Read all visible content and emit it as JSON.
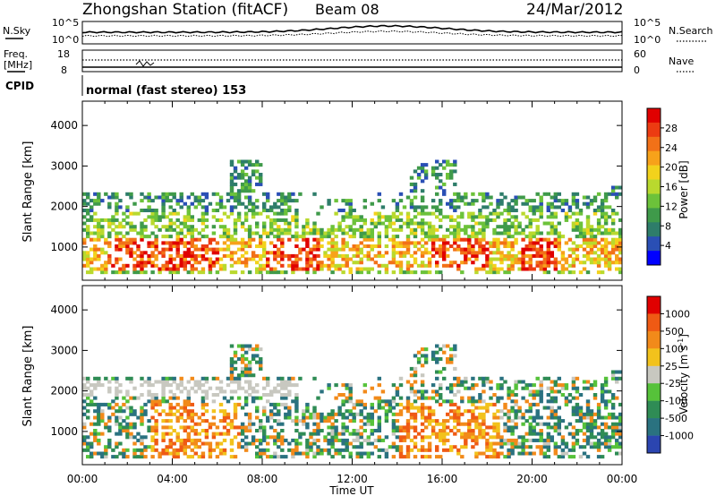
{
  "header": {
    "station": "Zhongshan Station (fitACF)",
    "beam": "Beam 08",
    "date": "24/Mar/2012"
  },
  "strip1": {
    "left_label": "N.Sky",
    "left_ticks": [
      "10^5",
      "10^0"
    ],
    "right_label": "N.Search",
    "right_ticks": [
      "10^5",
      "10^0"
    ]
  },
  "strip2": {
    "left_label_1": "Freq.",
    "left_label_2": "[MHz]",
    "left_ticks": [
      "18",
      "8"
    ],
    "right_label": "Nave",
    "right_ticks": [
      "60",
      "0"
    ],
    "cpid_label": "CPID",
    "cpid_value": "normal (fast stereo) 153"
  },
  "chart_data": [
    {
      "type": "heatmap",
      "name": "power",
      "ylabel": "Slant Range [km]",
      "xlabel": "Time UT",
      "xlim": [
        0,
        24
      ],
      "ylim": [
        180,
        4600
      ],
      "y_ticks": [
        1000,
        2000,
        3000,
        4000
      ],
      "x_ticks": [
        "00:00",
        "04:00",
        "08:00",
        "12:00",
        "16:00",
        "20:00",
        "00:00"
      ],
      "colorbar": {
        "label": "Power [dB]",
        "ticks": [
          "28",
          "24",
          "20",
          "16",
          "12",
          "8",
          "4"
        ],
        "range": [
          0,
          30
        ],
        "colors": [
          "#0000ff",
          "#2a4fb5",
          "#2e7d6a",
          "#3f9a4a",
          "#6cc23a",
          "#b9d92e",
          "#f2d21c",
          "#f7a21a",
          "#f27118",
          "#ec3b12",
          "#e00000"
        ]
      }
    },
    {
      "type": "heatmap",
      "name": "velocity",
      "ylabel": "Slant Range [km]",
      "xlabel": "Time UT",
      "xlim": [
        0,
        24
      ],
      "ylim": [
        180,
        4600
      ],
      "y_ticks": [
        1000,
        2000,
        3000,
        4000
      ],
      "x_ticks": [
        "00:00",
        "04:00",
        "08:00",
        "12:00",
        "16:00",
        "20:00",
        "00:00"
      ],
      "colorbar": {
        "label": "Velocity [m s^-1]",
        "ticks": [
          "1000",
          "500",
          "100",
          "25",
          "-25",
          "-100",
          "-500",
          "-1000"
        ],
        "colors": [
          "#2b45b0",
          "#2a7280",
          "#2f8c55",
          "#56c23a",
          "#c8c8c0",
          "#f2c21c",
          "#f28a1a",
          "#ef5a14",
          "#e00000"
        ]
      }
    }
  ],
  "time_axis_label": "Time UT"
}
